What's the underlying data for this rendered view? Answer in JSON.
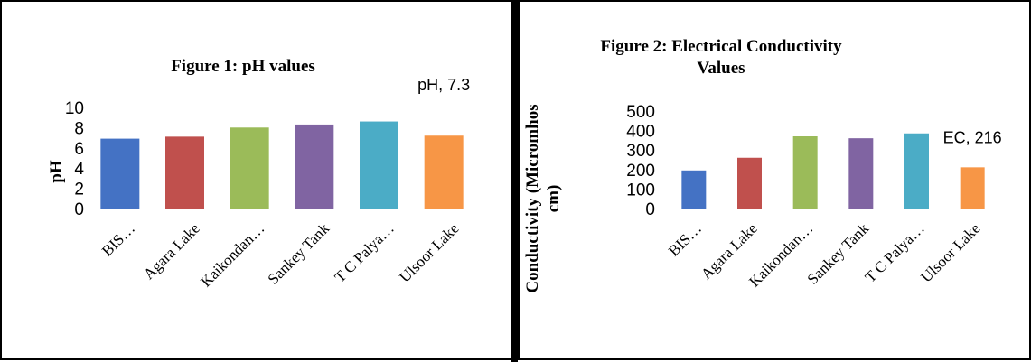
{
  "chart_data": [
    {
      "type": "bar",
      "title": "Figure 1: pH values",
      "ylabel": "pH",
      "xlabel": "",
      "categories": [
        "BIS…",
        "Agara Lake",
        "Kaikondan…",
        "Sankey Tank",
        "T C Palya…",
        "Ulsoor Lake"
      ],
      "values": [
        7.0,
        7.2,
        8.1,
        8.4,
        8.7,
        7.3
      ],
      "colors": [
        "#4472C4",
        "#C0504D",
        "#9BBB59",
        "#8064A2",
        "#4BACC6",
        "#F79646"
      ],
      "ylim": [
        0,
        10
      ],
      "yticks": [
        "0",
        "2",
        "4",
        "6",
        "8",
        "10"
      ],
      "data_label": "pH, 7.3",
      "grid": false,
      "legend": "none"
    },
    {
      "type": "bar",
      "title_lines": [
        "Figure 2: Electrical Conductivity",
        "Values"
      ],
      "ylabel_lines": [
        "Conductivity (Micromhos",
        "cm)"
      ],
      "xlabel": "",
      "categories": [
        "BIS…",
        "Agara Lake",
        "Kaikondan…",
        "Sankey Tank",
        "T C Palya…",
        "Ulsoor Lake"
      ],
      "values": [
        200,
        265,
        375,
        365,
        390,
        216
      ],
      "colors": [
        "#4472C4",
        "#C0504D",
        "#9BBB59",
        "#8064A2",
        "#4BACC6",
        "#F79646"
      ],
      "ylim": [
        0,
        500
      ],
      "yticks": [
        "0",
        "100",
        "200",
        "300",
        "400",
        "500"
      ],
      "data_label": "EC, 216",
      "grid": false,
      "legend": "none"
    }
  ]
}
